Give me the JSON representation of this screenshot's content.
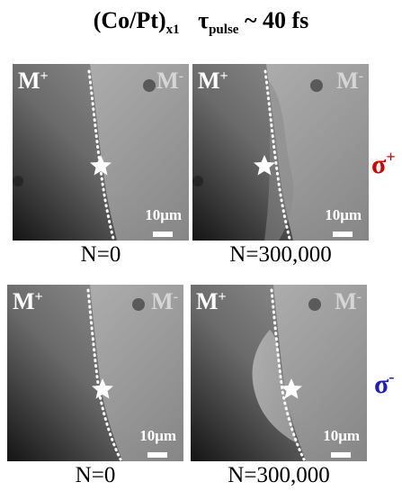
{
  "title": {
    "material": "(Co/Pt)",
    "material_sub": "x1",
    "tau": "τ",
    "tau_sub": "pulse",
    "pulse_text": "~ 40 fs"
  },
  "panel_labels": {
    "m_plus": "M",
    "m_plus_sup": "+",
    "m_minus": "M",
    "m_minus_sup": "-"
  },
  "scale_bar": {
    "label": "10μm"
  },
  "panels": [
    {
      "row": "sigma-plus",
      "n_label": "N=0"
    },
    {
      "row": "sigma-plus",
      "n_label": "N=300,000"
    },
    {
      "row": "sigma-minus",
      "n_label": "N=0"
    },
    {
      "row": "sigma-minus",
      "n_label": "N=300,000"
    }
  ],
  "rows": [
    {
      "label": "σ",
      "label_sup": "+",
      "color": "#d40000"
    },
    {
      "label": "σ",
      "label_sup": "-",
      "color": "#1f1fb8"
    }
  ]
}
